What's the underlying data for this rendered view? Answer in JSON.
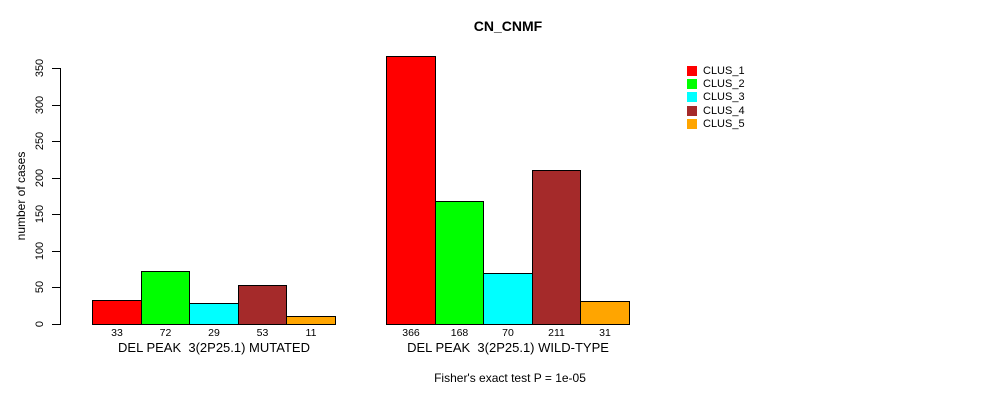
{
  "title": "CN_CNMF",
  "subtitle": "Fisher's exact test P = 1e-05",
  "y_axis": {
    "label": "number of cases",
    "ticks": [
      0,
      50,
      100,
      150,
      200,
      250,
      300,
      350
    ]
  },
  "legend": {
    "items": [
      {
        "label": "CLUS_1",
        "color": "#FF0000"
      },
      {
        "label": "CLUS_2",
        "color": "#00FF00"
      },
      {
        "label": "CLUS_3",
        "color": "#00FFFF"
      },
      {
        "label": "CLUS_4",
        "color": "#A52A2A"
      },
      {
        "label": "CLUS_5",
        "color": "#FFA500"
      }
    ]
  },
  "chart_data": {
    "type": "bar",
    "title": "CN_CNMF",
    "xlabel": "",
    "ylabel": "number of cases",
    "ylim": [
      0,
      350
    ],
    "yticks": [
      0,
      50,
      100,
      150,
      200,
      250,
      300,
      350
    ],
    "grid": false,
    "legend_position": "right",
    "annotation": "Fisher's exact test P = 1e-05",
    "groups": [
      {
        "label": "DEL PEAK  3(2P25.1) MUTATED",
        "values": [
          33,
          72,
          29,
          53,
          11
        ]
      },
      {
        "label": "DEL PEAK  3(2P25.1) WILD-TYPE",
        "values": [
          366,
          168,
          70,
          211,
          31
        ]
      }
    ],
    "series": [
      {
        "name": "CLUS_1",
        "color": "#FF0000",
        "values": [
          33,
          366
        ]
      },
      {
        "name": "CLUS_2",
        "color": "#00FF00",
        "values": [
          72,
          168
        ]
      },
      {
        "name": "CLUS_3",
        "color": "#00FFFF",
        "values": [
          29,
          70
        ]
      },
      {
        "name": "CLUS_4",
        "color": "#A52A2A",
        "values": [
          53,
          211
        ]
      },
      {
        "name": "CLUS_5",
        "color": "#FFA500",
        "values": [
          11,
          31
        ]
      }
    ]
  }
}
